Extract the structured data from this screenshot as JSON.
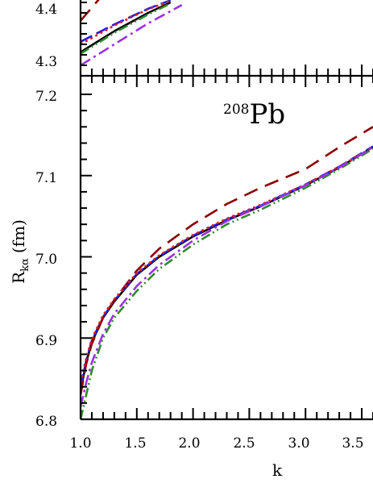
{
  "chart_data": [
    {
      "type": "line",
      "panel": "upper (partially visible)",
      "title": "",
      "xlabel": "",
      "ylabel": "",
      "xlim": [
        1.0,
        3.6
      ],
      "ylim": [
        4.27,
        4.47
      ],
      "yticks": [
        "4.3",
        "4.4"
      ],
      "series": [
        {
          "color": "#000000",
          "dash": "solid",
          "x": [
            1.0,
            1.3,
            1.6,
            1.8
          ],
          "values": [
            4.315,
            4.355,
            4.39,
            4.41
          ]
        },
        {
          "color": "#1f1fd6",
          "dash": "long-dash",
          "x": [
            1.0,
            1.3,
            1.6,
            1.8
          ],
          "values": [
            4.335,
            4.368,
            4.398,
            4.414
          ]
        },
        {
          "color": "#8b0000",
          "dash": "dash",
          "x": [
            1.0,
            1.2,
            1.4
          ],
          "values": [
            4.375,
            4.425,
            4.465
          ]
        },
        {
          "color": "#d62020",
          "dash": "dot",
          "x": [
            1.0,
            1.3,
            1.6,
            1.8
          ],
          "values": [
            4.33,
            4.366,
            4.397,
            4.413
          ]
        },
        {
          "color": "#2e8b2e",
          "dash": "dash-dot-dot",
          "x": [
            1.0,
            1.3,
            1.6,
            1.8
          ],
          "values": [
            4.312,
            4.352,
            4.387,
            4.408
          ]
        },
        {
          "color": "#9a32e6",
          "dash": "dash-dot",
          "x": [
            1.0,
            1.3,
            1.6,
            1.9
          ],
          "values": [
            4.29,
            4.33,
            4.37,
            4.405
          ]
        }
      ]
    },
    {
      "type": "line",
      "panel": "lower",
      "annotation": {
        "mass_number": "208",
        "element": "Pb"
      },
      "title": "",
      "xlabel": "k",
      "ylabel": {
        "main": "R",
        "subscript": "kα",
        "unit": "(fm)"
      },
      "xlim": [
        1.0,
        3.6
      ],
      "ylim": [
        6.8,
        7.2
      ],
      "xticks": [
        "1.0",
        "1.5",
        "2.0",
        "2.5",
        "3.0",
        "3.5"
      ],
      "yticks": [
        "6.8",
        "6.9",
        "7.0",
        "7.1",
        "7.2"
      ],
      "series": [
        {
          "color": "#000000",
          "dash": "solid",
          "x": [
            1.0,
            1.05,
            1.1,
            1.2,
            1.3,
            1.5,
            1.7,
            2.0,
            2.3,
            2.6,
            3.0,
            3.3,
            3.6
          ],
          "values": [
            6.835,
            6.87,
            6.895,
            6.925,
            6.945,
            6.978,
            7.0,
            7.025,
            7.045,
            7.062,
            7.088,
            7.11,
            7.135
          ]
        },
        {
          "color": "#1f1fd6",
          "dash": "long-dash",
          "x": [
            1.0,
            1.05,
            1.1,
            1.2,
            1.3,
            1.5,
            1.7,
            2.0,
            2.3,
            2.6,
            3.0,
            3.3,
            3.6
          ],
          "values": [
            6.84,
            6.872,
            6.897,
            6.926,
            6.946,
            6.979,
            7.001,
            7.026,
            7.046,
            7.063,
            7.089,
            7.111,
            7.136
          ]
        },
        {
          "color": "#8b0000",
          "dash": "dash",
          "x": [
            1.0,
            1.05,
            1.1,
            1.2,
            1.3,
            1.5,
            1.7,
            2.0,
            2.3,
            2.6,
            3.0,
            3.3,
            3.6
          ],
          "values": [
            6.83,
            6.868,
            6.893,
            6.925,
            6.947,
            6.983,
            7.01,
            7.04,
            7.065,
            7.085,
            7.108,
            7.135,
            7.16
          ]
        },
        {
          "color": "#d62020",
          "dash": "dot",
          "x": [
            1.0,
            1.05,
            1.1,
            1.2,
            1.3,
            1.5,
            1.7,
            2.0,
            2.3,
            2.6,
            3.0,
            3.3,
            3.6
          ],
          "values": [
            6.845,
            6.875,
            6.899,
            6.928,
            6.948,
            6.98,
            7.002,
            7.027,
            7.047,
            7.064,
            7.089,
            7.111,
            7.135
          ]
        },
        {
          "color": "#2e8b2e",
          "dash": "dash-dot-dot",
          "x": [
            1.0,
            1.05,
            1.1,
            1.2,
            1.3,
            1.5,
            1.7,
            2.0,
            2.3,
            2.6,
            3.0,
            3.3,
            3.6
          ],
          "values": [
            6.8,
            6.83,
            6.86,
            6.9,
            6.925,
            6.958,
            6.985,
            7.015,
            7.04,
            7.058,
            7.085,
            7.108,
            7.133
          ]
        },
        {
          "color": "#9a32e6",
          "dash": "dash-dot",
          "x": [
            1.0,
            1.05,
            1.1,
            1.2,
            1.3,
            1.5,
            1.7,
            2.0,
            2.3,
            2.6,
            3.0,
            3.3,
            3.6
          ],
          "values": [
            6.815,
            6.845,
            6.87,
            6.905,
            6.93,
            6.964,
            6.99,
            7.02,
            7.044,
            7.062,
            7.088,
            7.11,
            7.135
          ]
        }
      ]
    }
  ]
}
